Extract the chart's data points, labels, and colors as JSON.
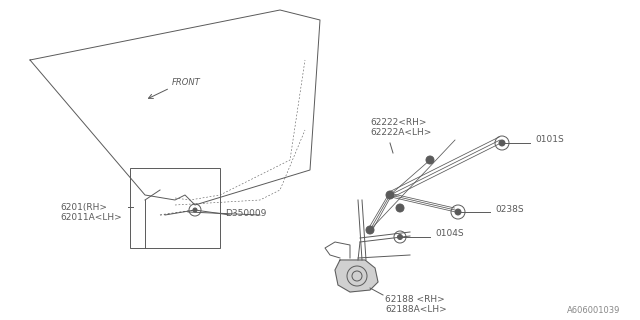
{
  "bg_color": "#ffffff",
  "line_color": "#5a5a5a",
  "text_color": "#5a5a5a",
  "figsize": [
    6.4,
    3.2
  ],
  "dpi": 100,
  "watermark": "A606001039",
  "glass_color": "#c8c8c8",
  "front_label": "FRONT",
  "labels": {
    "part1_line1": "6201(RH>",
    "part1_line2": "62011A<LH>",
    "part2_line1": "62222<RH>",
    "part2_line2": "62222A<LH>",
    "part3": "0101S",
    "part4": "0238S",
    "part5": "D350009",
    "part6": "0104S",
    "part7_line1": "62188 <RH>",
    "part7_line2": "62188A<LH>"
  }
}
